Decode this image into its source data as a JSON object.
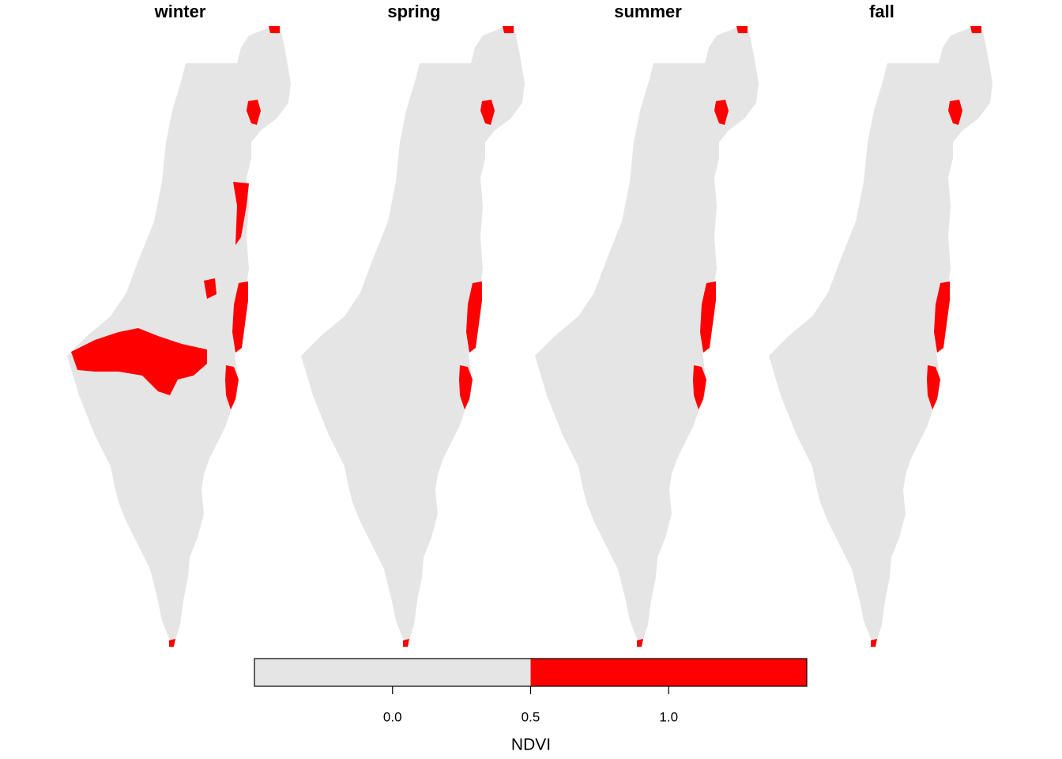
{
  "panels": [
    "winter",
    "spring",
    "summer",
    "fall"
  ],
  "legend": {
    "title": "NDVI",
    "lim": [
      -0.5,
      1.5
    ],
    "breaks": [
      -0.5,
      0.5,
      1.5
    ],
    "colors": [
      "#e5e5e5",
      "#ff0000"
    ],
    "ticks": [
      {
        "value": 0,
        "label": "0.0"
      },
      {
        "value": 0.5,
        "label": "0.5"
      },
      {
        "value": 1,
        "label": "1.0"
      }
    ]
  }
}
